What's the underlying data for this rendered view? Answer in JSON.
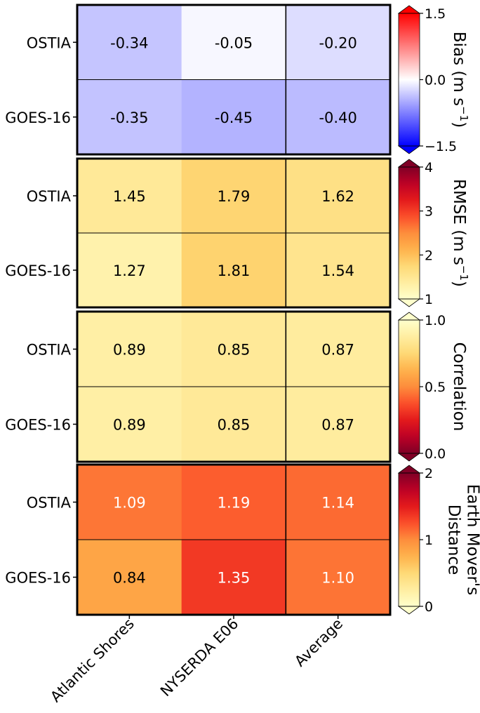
{
  "chart_data": {
    "type": "heatmap",
    "rows": [
      "OSTIA",
      "GOES-16"
    ],
    "columns": [
      "Atlantic Shores",
      "NYSERDA E06",
      "Average"
    ],
    "panels": [
      {
        "metric": "Bias",
        "colorbar_label": "Bias (m s",
        "colorbar_label_sup": "−1",
        "colorbar_label_tail": ")",
        "colormap": "bwr",
        "vmin": -1.5,
        "vmax": 1.5,
        "ticks": [
          -1.5,
          0.0,
          1.5
        ],
        "tick_labels": [
          "−1.5",
          "0.0",
          "1.5"
        ],
        "values": [
          [
            -0.34,
            -0.05,
            -0.2
          ],
          [
            -0.35,
            -0.45,
            -0.4
          ]
        ],
        "value_labels": [
          [
            "-0.34",
            "-0.05",
            "-0.20"
          ],
          [
            "-0.35",
            "-0.45",
            "-0.40"
          ]
        ]
      },
      {
        "metric": "RMSE",
        "colorbar_label": "RMSE (m s",
        "colorbar_label_sup": "−1",
        "colorbar_label_tail": ")",
        "colormap": "YlOrRd",
        "vmin": 1,
        "vmax": 4,
        "ticks": [
          1,
          2,
          3,
          4
        ],
        "tick_labels": [
          "1",
          "2",
          "3",
          "4"
        ],
        "values": [
          [
            1.45,
            1.79,
            1.62
          ],
          [
            1.27,
            1.81,
            1.54
          ]
        ],
        "value_labels": [
          [
            "1.45",
            "1.79",
            "1.62"
          ],
          [
            "1.27",
            "1.81",
            "1.54"
          ]
        ]
      },
      {
        "metric": "Correlation",
        "colorbar_label": "Correlation",
        "colormap": "YlOrRd_r",
        "vmin": 0.0,
        "vmax": 1.0,
        "ticks": [
          0.0,
          0.5,
          1.0
        ],
        "tick_labels": [
          "0.0",
          "0.5",
          "1.0"
        ],
        "values": [
          [
            0.89,
            0.85,
            0.87
          ],
          [
            0.89,
            0.85,
            0.87
          ]
        ],
        "value_labels": [
          [
            "0.89",
            "0.85",
            "0.87"
          ],
          [
            "0.89",
            "0.85",
            "0.87"
          ]
        ]
      },
      {
        "metric": "Earth Mover's Distance",
        "colorbar_label_lines": [
          "Earth Mover's",
          "Distance"
        ],
        "colormap": "YlOrRd",
        "vmin": 0,
        "vmax": 2,
        "ticks": [
          0,
          1,
          2
        ],
        "tick_labels": [
          "0",
          "1",
          "2"
        ],
        "values": [
          [
            1.09,
            1.19,
            1.14
          ],
          [
            0.84,
            1.35,
            1.1
          ]
        ],
        "value_labels": [
          [
            "1.09",
            "1.19",
            "1.14"
          ],
          [
            "0.84",
            "1.35",
            "1.10"
          ]
        ]
      }
    ]
  }
}
